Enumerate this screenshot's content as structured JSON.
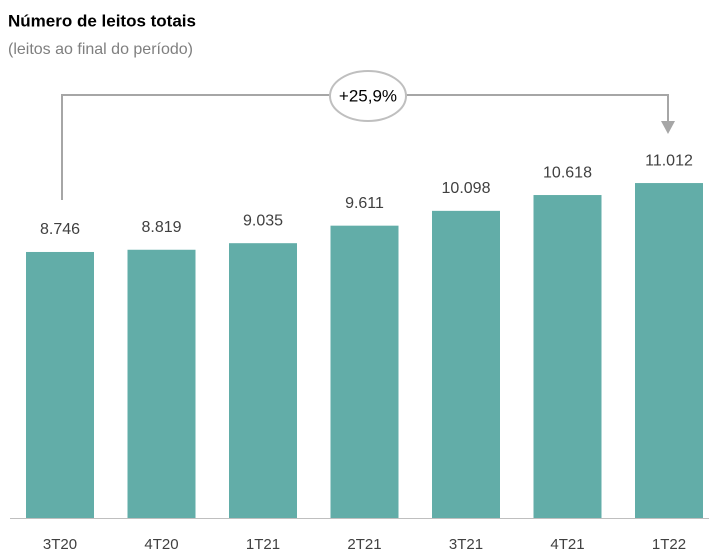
{
  "chart_data": {
    "type": "bar",
    "title": "Número de leitos totais",
    "subtitle": "(leitos ao final do período)",
    "annotation": "+25,9%",
    "categories": [
      "3T20",
      "4T20",
      "1T21",
      "2T21",
      "3T21",
      "4T21",
      "1T22"
    ],
    "values": [
      8746,
      8819,
      9035,
      9611,
      10098,
      10618,
      11012
    ],
    "value_labels": [
      "8.746",
      "8.819",
      "9.035",
      "9.611",
      "10.098",
      "10.618",
      "11.012"
    ],
    "color": "#62ada8",
    "ylim": [
      0,
      12000
    ]
  }
}
